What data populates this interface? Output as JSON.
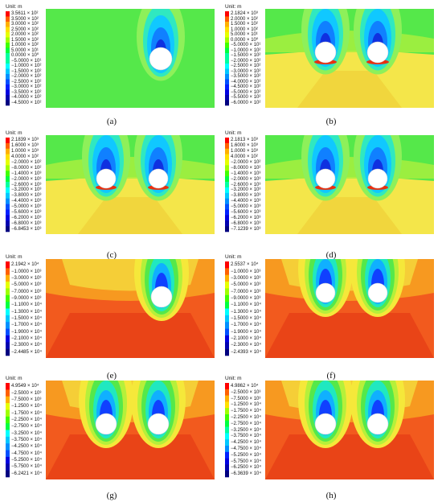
{
  "figure": {
    "unit_label": "Unit: m",
    "panels": [
      {
        "id": "a",
        "caption": "(a)",
        "stage": "single",
        "ticks": [
          "3.5611 × 10²",
          "3.5000 × 10²",
          "3.0000 × 10²",
          "2.5000 × 10²",
          "2.0000 × 10²",
          "1.5000 × 10²",
          "1.0000 × 10²",
          "5.0000 × 10¹",
          "0.0000 × 10⁰",
          "−5.0000 × 10¹",
          "−1.0000 × 10²",
          "−1.5000 × 10²",
          "−2.0000 × 10²",
          "−2.5000 × 10²",
          "−3.0000 × 10²",
          "−3.5000 × 10²",
          "−4.0000 × 10²",
          "−4.5000 × 10²"
        ]
      },
      {
        "id": "b",
        "caption": "(b)",
        "stage": "double",
        "ticks": [
          "2.1824 × 10³",
          "2.0000 × 10²",
          "1.5000 × 10²",
          "1.0000 × 10²",
          "5.0000 × 10¹",
          "0.0000 × 10⁰",
          "−5.0000 × 10¹",
          "−1.0000 × 10²",
          "−1.5000 × 10²",
          "−2.0000 × 10²",
          "−2.5000 × 10²",
          "−3.0000 × 10²",
          "−3.5000 × 10²",
          "−4.0000 × 10²",
          "−4.5000 × 10²",
          "−5.0000 × 10²",
          "−5.5000 × 10²",
          "−6.0000 × 10²"
        ]
      },
      {
        "id": "c",
        "caption": "(c)",
        "stage": "double",
        "ticks": [
          "2.1839 × 10³",
          "1.6000 × 10³",
          "1.0000 × 10³",
          "4.0000 × 10²",
          "−2.0000 × 10²",
          "−8.0000 × 10²",
          "−1.4000 × 10³",
          "−2.0000 × 10³",
          "−2.6000 × 10³",
          "−3.2000 × 10³",
          "−3.8000 × 10³",
          "−4.4000 × 10³",
          "−5.0000 × 10³",
          "−5.6000 × 10³",
          "−6.2000 × 10³",
          "−6.8000 × 10³",
          "−6.8453 × 10³"
        ]
      },
      {
        "id": "d",
        "caption": "(d)",
        "stage": "double2",
        "ticks": [
          "2.1813 × 10³",
          "1.6000 × 10³",
          "1.0000 × 10³",
          "4.0000 × 10²",
          "−2.0000 × 10²",
          "−8.0000 × 10²",
          "−1.4000 × 10³",
          "−2.0000 × 10³",
          "−2.6000 × 10³",
          "−3.2000 × 10³",
          "−3.8000 × 10³",
          "−4.4000 × 10³",
          "−5.0000 × 10³",
          "−5.6000 × 10³",
          "−6.2000 × 10³",
          "−6.8000 × 10³",
          "−7.1239 × 10³"
        ]
      },
      {
        "id": "e",
        "caption": "(e)",
        "stage": "redsingle",
        "ticks": [
          "2.1942 × 10⁴",
          "−1.0000 × 10³",
          "−3.0000 × 10³",
          "−5.0000 × 10³",
          "−7.0000 × 10³",
          "−9.0000 × 10³",
          "−1.1000 × 10⁴",
          "−1.3000 × 10⁴",
          "−1.5000 × 10⁴",
          "−1.7000 × 10⁴",
          "−1.9000 × 10⁴",
          "−2.1000 × 10⁴",
          "−2.3000 × 10⁴",
          "−2.4485 × 10⁴"
        ]
      },
      {
        "id": "f",
        "caption": "(f)",
        "stage": "reddouble",
        "ticks": [
          "2.5537 × 10⁴",
          "−1.0000 × 10³",
          "−3.0000 × 10³",
          "−5.0000 × 10³",
          "−7.0000 × 10³",
          "−9.0000 × 10³",
          "−1.1000 × 10⁴",
          "−1.3000 × 10⁴",
          "−1.5000 × 10⁴",
          "−1.7000 × 10⁴",
          "−1.9000 × 10⁴",
          "−2.1000 × 10⁴",
          "−2.3000 × 10⁴",
          "−2.4393 × 10⁴"
        ]
      },
      {
        "id": "g",
        "caption": "(g)",
        "stage": "reddouble2",
        "ticks": [
          "4.9549 × 10⁴",
          "−2.5000 × 10³",
          "−7.5000 × 10³",
          "−1.2500 × 10⁴",
          "−1.7500 × 10⁴",
          "−2.2500 × 10⁴",
          "−2.7500 × 10⁴",
          "−3.2500 × 10⁴",
          "−3.7500 × 10⁴",
          "−4.2500 × 10⁴",
          "−4.7500 × 10⁴",
          "−5.2500 × 10⁴",
          "−5.7500 × 10⁴",
          "−6.2421 × 10⁴"
        ]
      },
      {
        "id": "h",
        "caption": "(h)",
        "stage": "redsingle2",
        "ticks": [
          "4.9862 × 10⁴",
          "−2.5000 × 10³",
          "−7.5000 × 10³",
          "−1.2500 × 10⁴",
          "−1.7500 × 10⁴",
          "−2.2500 × 10⁴",
          "−2.7500 × 10⁴",
          "−3.2500 × 10⁴",
          "−3.7500 × 10⁴",
          "−4.2500 × 10⁴",
          "−4.7500 × 10⁴",
          "−5.2500 × 10⁴",
          "−5.7500 × 10⁴",
          "−6.2500 × 10⁴",
          "−6.3639 × 10⁴"
        ]
      }
    ]
  }
}
